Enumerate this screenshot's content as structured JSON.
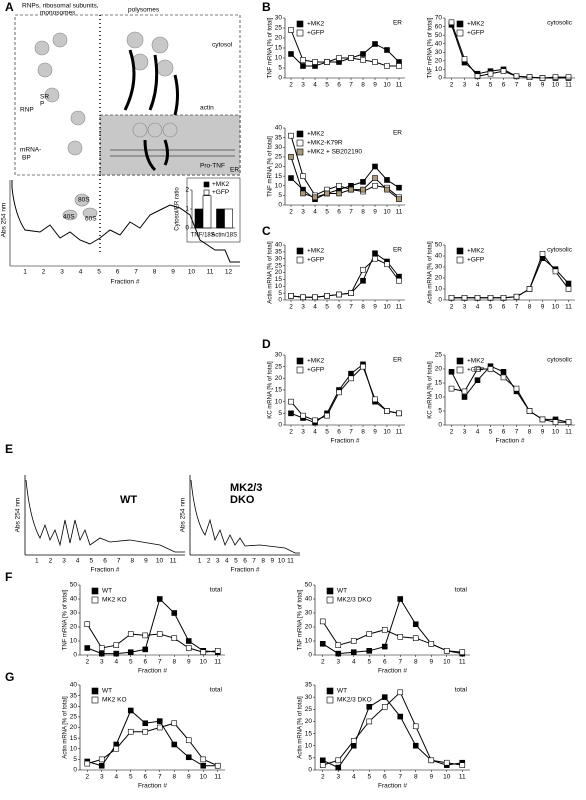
{
  "panels": [
    "A",
    "B",
    "C",
    "D",
    "E",
    "F",
    "G"
  ],
  "diagram_a": {
    "header_left": [
      "RNPs, ribosomal subunits,",
      "monosomes"
    ],
    "header_right": "polysomes",
    "cytosol": "cytosol",
    "actin": "actin",
    "rnp": "RNP",
    "srp": [
      "SR",
      "P"
    ],
    "mrnabp": [
      "mRNA-",
      "BP"
    ],
    "pro_tnf": "Pro-TNF",
    "er": "ER",
    "subunits": [
      "40S",
      "60S",
      "80S"
    ],
    "profile": {
      "ylabel": "Abs 254 nm",
      "xlabel": "Fraction #",
      "ticks": [
        "1",
        "2",
        "3",
        "4",
        "5",
        "6",
        "7",
        "8",
        "9",
        "10",
        "11",
        "12"
      ]
    }
  },
  "profiles_e": [
    {
      "label": "WT",
      "ylabel": "Abs 254 nm",
      "xlabel": "Fraction #",
      "ticks": [
        "1",
        "2",
        "3",
        "4",
        "5",
        "6",
        "7",
        "8",
        "9",
        "10",
        "11"
      ]
    },
    {
      "label": [
        "MK2/3",
        "DKO"
      ],
      "ylabel": "Abs 254 nm",
      "xlabel": "Fraction #",
      "ticks": [
        "1",
        "2",
        "3",
        "4",
        "5",
        "6",
        "7",
        "8",
        "9",
        "10",
        "11"
      ]
    }
  ],
  "chart_data": [
    {
      "type": "line",
      "title": "ER",
      "ylabel": "TNF mRNA [% of total]",
      "categories": [
        "2",
        "3",
        "4",
        "5",
        "6",
        "7",
        "8",
        "9",
        "10",
        "11"
      ],
      "ylim": [
        0,
        30
      ],
      "yticks": [
        0,
        5,
        10,
        15,
        20,
        25,
        30
      ],
      "series": [
        {
          "name": "+MK2",
          "color": "#000000",
          "values": [
            12,
            6,
            6,
            8,
            8,
            10,
            12,
            17,
            14,
            8
          ]
        },
        {
          "name": "+GFP",
          "color": "#ffffff",
          "values": [
            24,
            9,
            8,
            8,
            10,
            10,
            9,
            8,
            6,
            6
          ]
        }
      ]
    },
    {
      "type": "line",
      "title": "cytosolic",
      "ylabel": "TNF mRNA [% of total]",
      "categories": [
        "2",
        "3",
        "4",
        "5",
        "6",
        "7",
        "8",
        "9",
        "10",
        "11"
      ],
      "ylim": [
        0,
        70
      ],
      "yticks": [
        0,
        10,
        20,
        30,
        40,
        50,
        60,
        70
      ],
      "series": [
        {
          "name": "+MK2",
          "color": "#000000",
          "values": [
            62,
            18,
            5,
            8,
            10,
            2,
            1,
            0,
            0,
            0
          ]
        },
        {
          "name": "+GFP",
          "color": "#ffffff",
          "values": [
            65,
            22,
            2,
            5,
            8,
            2,
            1,
            0,
            1,
            1
          ]
        }
      ]
    },
    {
      "type": "line",
      "title": "ER",
      "ylabel": "TNF mRNA [% of total]",
      "categories": [
        "2",
        "3",
        "4",
        "5",
        "6",
        "7",
        "8",
        "9",
        "10",
        "11"
      ],
      "ylim": [
        0,
        40
      ],
      "yticks": [
        0,
        5,
        10,
        15,
        20,
        25,
        30,
        35,
        40
      ],
      "series": [
        {
          "name": "+MK2",
          "color": "#000000",
          "values": [
            14,
            8,
            3,
            6,
            8,
            10,
            12,
            20,
            13,
            9
          ]
        },
        {
          "name": "+MK2-K79R",
          "color": "#ffffff",
          "values": [
            36,
            15,
            5,
            8,
            10,
            8,
            7,
            10,
            9,
            4
          ]
        },
        {
          "name": "+MK2 + SB202190",
          "color": "#a89a7a",
          "values": [
            25,
            6,
            4,
            6,
            6,
            8,
            8,
            14,
            8,
            3
          ]
        }
      ]
    },
    {
      "type": "bar",
      "ylabel": "Cytosol/ER ratio",
      "categories": [
        "TNF/18S",
        "Actin/18S"
      ],
      "ylim": [
        0,
        2
      ],
      "yticks": [
        0,
        1,
        2
      ],
      "series": [
        {
          "name": "+MK2",
          "color": "#000000",
          "values": [
            1.0,
            1.0
          ]
        },
        {
          "name": "+GFP",
          "color": "#ffffff",
          "values": [
            1.7,
            1.0
          ]
        }
      ]
    },
    {
      "type": "line",
      "title": "ER",
      "ylabel": "Actin mRNA [% of total]",
      "categories": [
        "2",
        "3",
        "4",
        "5",
        "6",
        "7",
        "8",
        "9",
        "10",
        "11"
      ],
      "ylim": [
        0,
        40
      ],
      "yticks": [
        0,
        5,
        10,
        15,
        20,
        25,
        30,
        35,
        40
      ],
      "series": [
        {
          "name": "+MK2",
          "color": "#000000",
          "values": [
            3,
            2,
            2,
            3,
            4,
            5,
            14,
            34,
            28,
            17
          ]
        },
        {
          "name": "+GFP",
          "color": "#ffffff",
          "values": [
            3,
            2,
            2,
            3,
            4,
            5,
            22,
            30,
            26,
            14
          ]
        }
      ]
    },
    {
      "type": "line",
      "title": "cytosolic",
      "ylabel": "Actin mRNA [% of total]",
      "categories": [
        "2",
        "3",
        "4",
        "5",
        "6",
        "7",
        "8",
        "9",
        "10",
        "11"
      ],
      "ylim": [
        0,
        50
      ],
      "yticks": [
        0,
        10,
        20,
        30,
        40,
        50
      ],
      "series": [
        {
          "name": "+MK2",
          "color": "#000000",
          "values": [
            2,
            2,
            2,
            2,
            2,
            3,
            10,
            38,
            28,
            15
          ]
        },
        {
          "name": "+GFP",
          "color": "#ffffff",
          "values": [
            2,
            2,
            2,
            2,
            2,
            3,
            10,
            42,
            26,
            10
          ]
        }
      ]
    },
    {
      "type": "line",
      "title": "ER",
      "ylabel": "KC mRNA [% of total]",
      "xlabel": "Fraction #",
      "categories": [
        "2",
        "3",
        "4",
        "5",
        "6",
        "7",
        "8",
        "9",
        "10",
        "11"
      ],
      "ylim": [
        0,
        30
      ],
      "yticks": [
        0,
        5,
        10,
        15,
        20,
        25,
        30
      ],
      "series": [
        {
          "name": "+MK2",
          "color": "#000000",
          "values": [
            5,
            3,
            1,
            5,
            15,
            22,
            26,
            10,
            6,
            5
          ]
        },
        {
          "name": "+GFP",
          "color": "#ffffff",
          "values": [
            10,
            4,
            2,
            4,
            14,
            20,
            25,
            11,
            6,
            5
          ]
        }
      ]
    },
    {
      "type": "line",
      "title": "cytosolic",
      "ylabel": "KC mRNA [% of total]",
      "xlabel": "Fraction #",
      "categories": [
        "2",
        "3",
        "4",
        "5",
        "6",
        "7",
        "8",
        "9",
        "10",
        "11"
      ],
      "ylim": [
        0,
        25
      ],
      "yticks": [
        0,
        5,
        10,
        15,
        20,
        25
      ],
      "series": [
        {
          "name": "+MK2",
          "color": "#000000",
          "values": [
            19,
            10,
            16,
            21,
            19,
            12,
            5,
            2,
            2,
            1
          ]
        },
        {
          "name": "+GFP",
          "color": "#ffffff",
          "values": [
            13,
            12,
            20,
            20,
            17,
            13,
            5,
            2,
            1,
            1
          ]
        }
      ]
    },
    {
      "type": "line",
      "title": "total",
      "ylabel": "TNF mRNA [% of total]",
      "xlabel": "Fraction #",
      "categories": [
        "2",
        "3",
        "4",
        "5",
        "6",
        "7",
        "8",
        "9",
        "10",
        "11"
      ],
      "ylim": [
        0,
        50
      ],
      "yticks": [
        0,
        10,
        20,
        30,
        40,
        50
      ],
      "series": [
        {
          "name": "WT",
          "color": "#000000",
          "values": [
            5,
            1,
            1,
            2,
            4,
            40,
            30,
            10,
            3,
            2
          ]
        },
        {
          "name": "MK2 KO",
          "color": "#ffffff",
          "values": [
            22,
            5,
            7,
            15,
            14,
            15,
            12,
            5,
            2,
            3
          ]
        }
      ]
    },
    {
      "type": "line",
      "title": "total",
      "ylabel": "TNF mRNA [% of total]",
      "xlabel": "Fraction #",
      "categories": [
        "2",
        "3",
        "4",
        "5",
        "6",
        "7",
        "8",
        "9",
        "10",
        "11"
      ],
      "ylim": [
        0,
        50
      ],
      "yticks": [
        0,
        10,
        20,
        30,
        40,
        50
      ],
      "series": [
        {
          "name": "WT",
          "color": "#000000",
          "values": [
            8,
            1,
            2,
            3,
            6,
            40,
            22,
            8,
            3,
            1
          ]
        },
        {
          "name": "MK2/3 DKO",
          "color": "#ffffff",
          "values": [
            24,
            7,
            10,
            15,
            18,
            13,
            12,
            8,
            3,
            2
          ]
        }
      ]
    },
    {
      "type": "line",
      "title": "total",
      "ylabel": "Actin mRNA [% of total]",
      "xlabel": "Fraction #",
      "categories": [
        "2",
        "3",
        "4",
        "5",
        "6",
        "7",
        "8",
        "9",
        "10",
        "11"
      ],
      "ylim": [
        0,
        40
      ],
      "yticks": [
        0,
        5,
        10,
        15,
        20,
        25,
        30,
        35,
        40
      ],
      "series": [
        {
          "name": "WT",
          "color": "#000000",
          "values": [
            4,
            2,
            12,
            28,
            22,
            23,
            12,
            6,
            2,
            2
          ]
        },
        {
          "name": "MK2 KO",
          "color": "#ffffff",
          "values": [
            3,
            5,
            10,
            18,
            18,
            20,
            22,
            14,
            5,
            2
          ]
        }
      ]
    },
    {
      "type": "line",
      "title": "total",
      "ylabel": "Actin mRNA [% of total]",
      "xlabel": "Fraction #",
      "categories": [
        "2",
        "3",
        "4",
        "5",
        "6",
        "7",
        "8",
        "9",
        "10",
        "11"
      ],
      "ylim": [
        0,
        35
      ],
      "yticks": [
        0,
        5,
        10,
        15,
        20,
        25,
        30,
        35
      ],
      "series": [
        {
          "name": "WT",
          "color": "#000000",
          "values": [
            4,
            1,
            10,
            26,
            30,
            22,
            10,
            4,
            2,
            3
          ]
        },
        {
          "name": "MK2/3 DKO",
          "color": "#ffffff",
          "values": [
            2,
            4,
            12,
            20,
            26,
            32,
            18,
            4,
            3,
            2
          ]
        }
      ]
    }
  ]
}
